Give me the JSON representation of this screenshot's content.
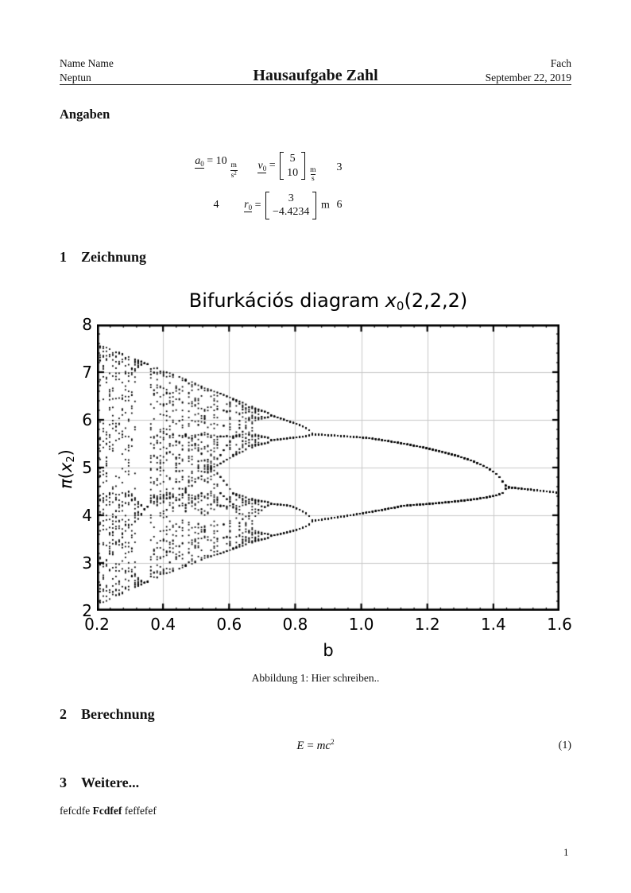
{
  "header": {
    "left_line1": "Name Name",
    "left_line2": "Neptun",
    "center_title": "Hausaufgabe Zahl",
    "right_line1": "Fach",
    "right_line2": "September 22, 2019"
  },
  "angaben": {
    "heading": "Angaben"
  },
  "given": {
    "a0": {
      "symbol": "a",
      "subscript": "0",
      "equals": "=",
      "value": "10",
      "unit_num": "m",
      "unit_den": "s",
      "unit_den_exp": "2"
    },
    "v0": {
      "symbol": "v",
      "subscript": "0",
      "equals": "=",
      "vector": [
        "5",
        "10"
      ],
      "unit_num": "m",
      "unit_den": "s"
    },
    "r0": {
      "symbol": "r",
      "subscript": "0",
      "equals": "=",
      "vector": [
        "3",
        "−4.4234"
      ],
      "unit": "m"
    },
    "stray_row1_right": "3",
    "stray_row2_left": "4",
    "stray_row2_right": "6"
  },
  "sections": [
    {
      "number": "1",
      "title": "Zeichnung"
    },
    {
      "number": "2",
      "title": "Berechnung"
    },
    {
      "number": "3",
      "title": "Weitere..."
    }
  ],
  "figure": {
    "caption": "Abbildung 1: Hier schreiben.."
  },
  "equation": {
    "lhs": "E",
    "rel": "=",
    "rhs": "mc",
    "exponent": "2",
    "tag": "(1)"
  },
  "closing": {
    "text_before": "fefcdfe ",
    "text_bold": "Fcdfef",
    "text_after": " feffefef"
  },
  "footer": {
    "page_number": "1"
  },
  "chart_data": {
    "type": "scatter",
    "title": "Bifurkációs diagram x₀(2,2,2)",
    "title_parts": {
      "prefix": "Bifurkációs diagram ",
      "var": "x",
      "sub": "0",
      "suffix": "(2,2,2)"
    },
    "xlabel": "b",
    "ylabel": "π(x₂)",
    "ylabel_parts": {
      "pi": "π",
      "open": "(",
      "var": "x",
      "sub": "2",
      "close": ")"
    },
    "xlim": [
      0.2,
      1.6
    ],
    "ylim": [
      2,
      8
    ],
    "xticks": [
      0.2,
      0.4,
      0.6,
      0.8,
      1.0,
      1.2,
      1.4,
      1.6
    ],
    "xtick_labels": [
      "0.2",
      "0.4",
      "0.6",
      "0.8",
      "1.0",
      "1.2",
      "1.4",
      "1.6"
    ],
    "yticks": [
      2,
      3,
      4,
      5,
      6,
      7,
      8
    ],
    "ytick_labels": [
      "2",
      "3",
      "4",
      "5",
      "6",
      "7",
      "8"
    ],
    "x_minor_step": 0.04,
    "y_minor_step": 0.2,
    "grid": true,
    "grid_color": "#c9c9c9",
    "frame_color": "#000000",
    "marker_color": "#000000",
    "marker_size_px": 1.8,
    "description": "Bifurcation diagram: chaotic band for small b narrowing through period-doubling reversals; period-4 pairs merge near b≈0.85 (y≈5.7 and y≈3.9), period-2 branches merge at b≈1.43 (y≈4.6), single branch ends at b=1.6 (y≈4.47); chaotic band at b=0.2 spans y≈2.1–7.6 with a periodic window near b≈0.36",
    "landmarks": {
      "chaos_band_at_b_0_2": [
        2.1,
        7.6
      ],
      "period4_upper_merge": {
        "b": 0.85,
        "y": 5.7
      },
      "period4_lower_merge": {
        "b": 0.85,
        "y": 3.9
      },
      "period2_merge": {
        "b": 1.43,
        "y": 4.6
      },
      "fixed_point_at_b_1_6": {
        "b": 1.6,
        "y": 4.47
      },
      "periodic_window_b": 0.36
    },
    "generator": {
      "map": "logistic",
      "r_intercept": 4.1069,
      "r_slope": -0.7741,
      "b_steps": 146,
      "transient": 280,
      "keep": 40,
      "x_init": 0.5,
      "y_transform_points": [
        [
          0.0,
          1.95
        ],
        [
          0.047,
          2.1
        ],
        [
          0.156,
          2.62
        ],
        [
          0.383,
          3.66
        ],
        [
          0.44,
          3.88
        ],
        [
          0.501,
          4.2
        ],
        [
          0.6513,
          4.47
        ],
        [
          0.667,
          4.6
        ],
        [
          0.827,
          5.62
        ],
        [
          0.85,
          5.7
        ],
        [
          0.875,
          5.96
        ],
        [
          0.988,
          7.6
        ],
        [
          1.0,
          7.75
        ]
      ]
    }
  }
}
